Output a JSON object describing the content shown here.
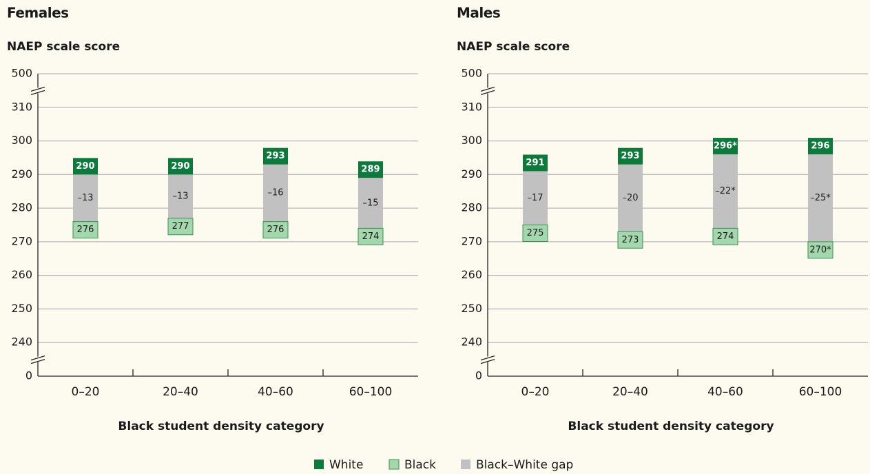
{
  "chart_data": [
    {
      "type": "range",
      "title": "Females",
      "ylabel": "NAEP scale score",
      "xlabel": "Black student density category",
      "categories": [
        "0–20",
        "20–40",
        "40–60",
        "60–100"
      ],
      "ylim": [
        0,
        500
      ],
      "yticks": [
        0,
        240,
        250,
        260,
        270,
        280,
        290,
        300,
        310,
        500
      ],
      "y_breaks": [
        [
          0,
          240
        ],
        [
          310,
          500
        ]
      ],
      "grid": true,
      "series": [
        {
          "name": "White",
          "color": "#0b7a3b",
          "values": [
            290,
            290,
            293,
            289
          ]
        },
        {
          "name": "Black",
          "color": "#a3d7ad",
          "values": [
            276,
            277,
            276,
            274
          ]
        },
        {
          "name": "Black–White gap",
          "color": "#c1c1c1",
          "values": [
            -13,
            -13,
            -16,
            -15
          ],
          "value_labels": [
            "–13",
            "–13",
            "–16",
            "–15"
          ]
        }
      ]
    },
    {
      "type": "range",
      "title": "Males",
      "ylabel": "NAEP scale score",
      "xlabel": "Black student density category",
      "categories": [
        "0–20",
        "20–40",
        "40–60",
        "60–100"
      ],
      "ylim": [
        0,
        500
      ],
      "yticks": [
        0,
        240,
        250,
        260,
        270,
        280,
        290,
        300,
        310,
        500
      ],
      "y_breaks": [
        [
          0,
          240
        ],
        [
          310,
          500
        ]
      ],
      "grid": true,
      "series": [
        {
          "color": "#0b7a3b",
          "values": [
            291,
            293,
            296,
            296
          ],
          "value_labels": [
            "291",
            "293",
            "296*",
            "296"
          ]
        },
        {
          "color": "#a3d7ad",
          "values": [
            275,
            273,
            274,
            270
          ],
          "value_labels": [
            "275",
            "273",
            "274",
            "270*"
          ]
        },
        {
          "color": "#c1c1c1",
          "values": [
            -17,
            -20,
            -22,
            -25
          ],
          "value_labels": [
            "–17",
            "–20",
            "–22*",
            "–25*"
          ]
        }
      ]
    }
  ]
}
